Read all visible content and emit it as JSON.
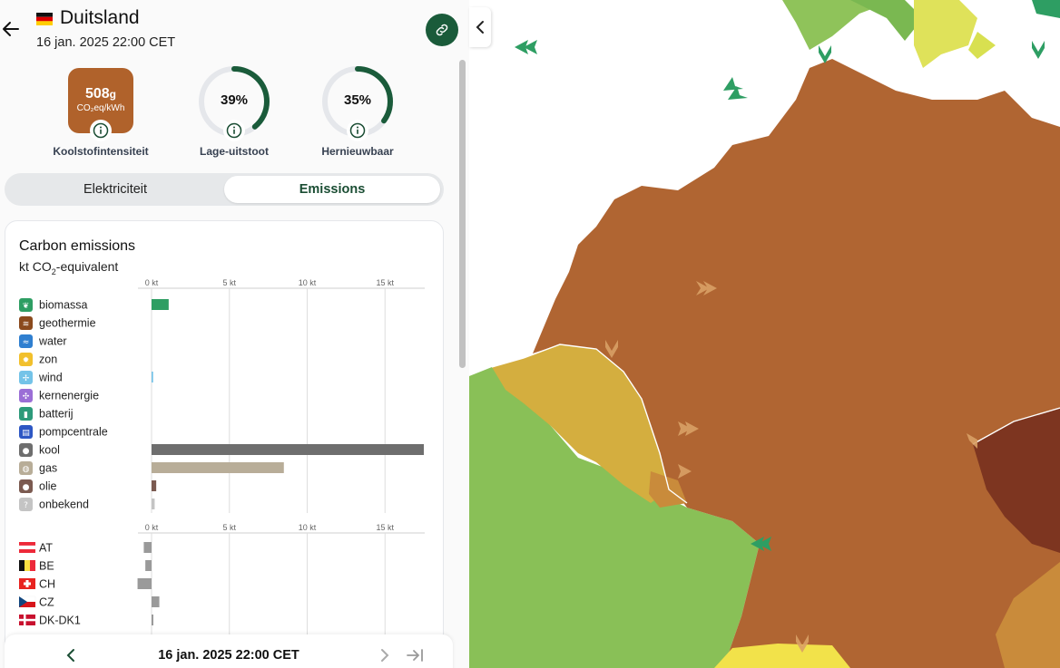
{
  "header": {
    "country": "Duitsland",
    "datetime": "16 jan. 2025 22:00 CET"
  },
  "metrics": {
    "carbon_intensity": {
      "value": "508",
      "unit_g": "g",
      "unit": "CO₂eq/kWh",
      "label": "Koolstofintensiteit",
      "color": "#b0622b"
    },
    "low_emission": {
      "value": "39%",
      "fraction": 0.39,
      "label": "Lage-uitstoot"
    },
    "renewable": {
      "value": "35%",
      "fraction": 0.35,
      "label": "Hernieuwbaar"
    }
  },
  "tabs": {
    "electricity": "Elektriciteit",
    "emissions": "Emissions",
    "active": "emissions"
  },
  "chart": {
    "title": "Carbon emissions",
    "subtitle_prefix": "kt CO",
    "subtitle_sub": "2",
    "subtitle_suffix": "-equivalent",
    "ticks": [
      "0 kt",
      "5 kt",
      "10 kt",
      "15 kt"
    ]
  },
  "chart_data": [
    {
      "type": "bar",
      "orientation": "horizontal",
      "xlabel": "kt",
      "xlim": [
        0,
        17.5
      ],
      "categories": [
        "biomassa",
        "geothermie",
        "water",
        "zon",
        "wind",
        "kernenergie",
        "batterij",
        "pompcentrale",
        "kool",
        "gas",
        "olie",
        "onbekend"
      ],
      "values": [
        1.1,
        0,
        0,
        0,
        0.1,
        0,
        0,
        0,
        17.5,
        8.5,
        0.3,
        0.2
      ],
      "colors": [
        "#2e9e63",
        "#8b4a1d",
        "#2f7fd0",
        "#f2c02c",
        "#74c3e8",
        "#9b6ed6",
        "#2d9a7a",
        "#2d57c4",
        "#6e6e6e",
        "#b8ad98",
        "#7b5a50",
        "#c4c4c4"
      ]
    },
    {
      "type": "bar",
      "orientation": "horizontal",
      "xlabel": "kt",
      "xlim": [
        -1,
        17.5
      ],
      "categories": [
        "AT",
        "BE",
        "CH",
        "CZ",
        "DK-DK1"
      ],
      "values": [
        -0.5,
        -0.4,
        -0.9,
        0.5,
        0.1
      ]
    }
  ],
  "footer": {
    "datetime": "16 jan. 2025 22:00 CET"
  }
}
